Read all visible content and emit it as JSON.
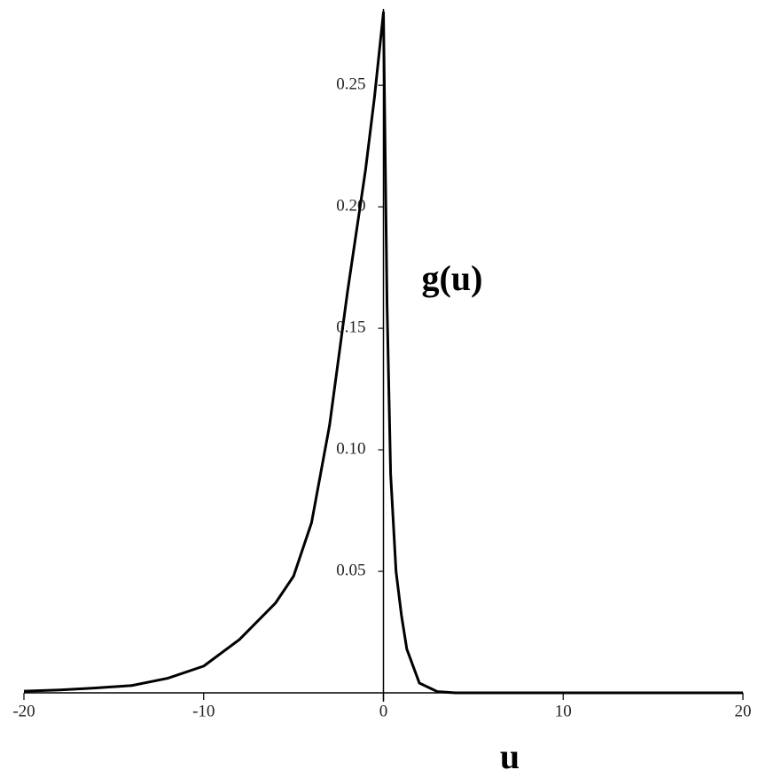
{
  "chart_data": {
    "type": "line",
    "x_label": "u",
    "y_label": "g(u)",
    "series": [
      {
        "name": "g(u)",
        "color": "#000000",
        "x": [
          -20,
          -18,
          -16,
          -14,
          -12,
          -10,
          -8,
          -6,
          -5,
          -4,
          -3,
          -2,
          -1,
          -0.5,
          0,
          0.2,
          0.4,
          0.7,
          1,
          1.3,
          2,
          3,
          4,
          10,
          20
        ],
        "values": [
          0.0007,
          0.0012,
          0.002,
          0.003,
          0.006,
          0.011,
          0.022,
          0.037,
          0.048,
          0.07,
          0.11,
          0.165,
          0.215,
          0.245,
          0.28,
          0.16,
          0.09,
          0.05,
          0.032,
          0.018,
          0.004,
          0.0005,
          0,
          0,
          0
        ]
      }
    ],
    "xlim": [
      -20,
      20
    ],
    "xticks": [
      -20,
      -10,
      0,
      10,
      20
    ],
    "ylim": [
      0,
      0.28
    ],
    "yticks": [
      0.05,
      {
        "value": 0.1,
        "label": "0.10"
      },
      0.15,
      {
        "value": 0.2,
        "label": "0.20"
      },
      0.25
    ],
    "grid": false
  }
}
